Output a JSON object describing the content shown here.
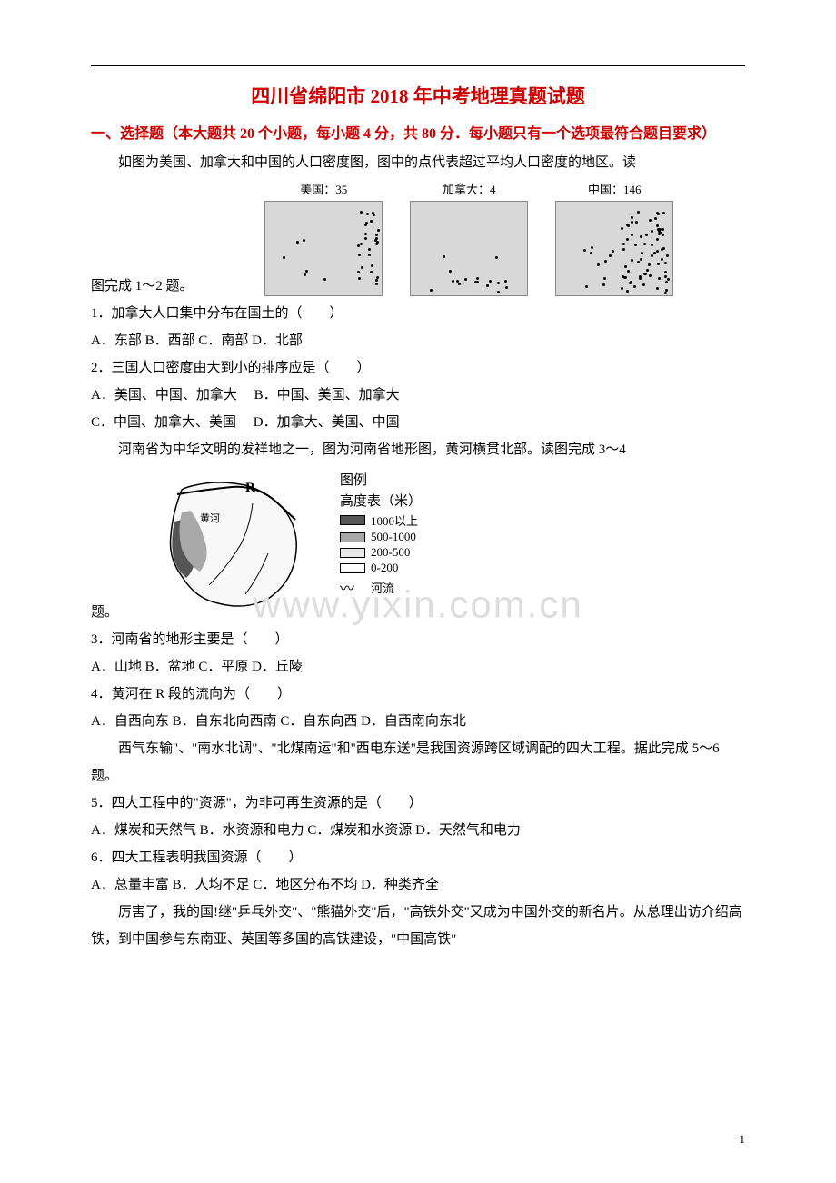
{
  "title": "四川省绵阳市 2018 年中考地理真题试题",
  "section_header_1": "一、选择题（本大题共 20 个小题，每小题 4 分，共 80 分．每小题只有一个选项最符合题目要求）",
  "intro_maps": "如图为美国、加拿大和中国的人口密度图，图中的点代表超过平均人口密度的地区。读",
  "intro_maps_cont": "图完成 1～2 题。",
  "map_labels": {
    "usa": "美国：35",
    "canada": "加拿大：4",
    "china": "中国：146"
  },
  "q1": "1．加拿大人口集中分布在国土的（　　）",
  "q1_opts": "A．东部 B．西部 C．南部 D．北部",
  "q2": "2．三国人口密度由大到小的排序应是（　　）",
  "q2_opts_a": "A．美国、中国、加拿大　 B．中国、美国、加拿大",
  "q2_opts_b": "C．中国、加拿大、美国　 D．加拿大、美国、中国",
  "henan_intro": "河南省为中华文明的发祥地之一，图为河南省地形图，黄河横贯北部。读图完成 3～4",
  "henan_cont": "题。",
  "legend": {
    "title1": "图例",
    "title2": "高度表（米）",
    "l1": "1000以上",
    "l2": "500-1000",
    "l3": "200-500",
    "l4": "0-200",
    "river": "河流",
    "colors": {
      "c1": "#555555",
      "c2": "#a8a8a8",
      "c3": "#e8e8e8",
      "c4": "#ffffff"
    }
  },
  "r_label": "R",
  "huanghe": "黄河",
  "q3": "3．河南省的地形主要是（　　）",
  "q3_opts": "A．山地 B．盆地 C．平原 D．丘陵",
  "q4": "4．黄河在 R 段的流向为（　　）",
  "q4_opts": "A．自西向东 B．自东北向西南 C．自东向西 D．自西南向东北",
  "resource_intro": "西气东输\"、\"南水北调\"、\"北煤南运\"和\"西电东送\"是我国资源跨区域调配的四大工程。据此完成 5～6 题。",
  "q5": "5．四大工程中的\"资源\"，为非可再生资源的是（　　）",
  "q5_opts": "A．煤炭和天然气 B．水资源和电力 C．煤炭和水资源 D．天然气和电力",
  "q6": "6．四大工程表明我国资源（　　）",
  "q6_opts": "A．总量丰富 B．人均不足 C．地区分布不均 D．种类齐全",
  "hsr_intro": "厉害了，我的国!继\"乒乓外交\"、\"熊猫外交\"后，\"高铁外交\"又成为中国外交的新名片。从总理出访介绍高铁，到中国参与东南亚、英国等多国的高铁建设，\"中国高铁\"",
  "watermark": "www.yixin.com.cn",
  "page_num": "1"
}
